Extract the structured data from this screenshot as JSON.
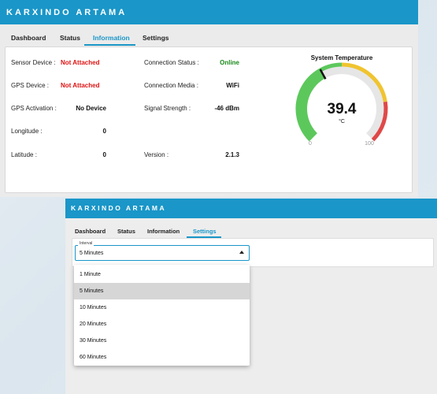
{
  "window1": {
    "brand": "KARXINDO ARTAMA",
    "tabs": [
      "Dashboard",
      "Status",
      "Information",
      "Settings"
    ],
    "active_tab": "Information",
    "info": {
      "sensor_device": {
        "label": "Sensor Device :",
        "value": "Not Attached"
      },
      "gps_device": {
        "label": "GPS Device :",
        "value": "Not Attached"
      },
      "gps_activation": {
        "label": "GPS Activation :",
        "value": "No Device"
      },
      "longitude": {
        "label": "Longitude :",
        "value": "0"
      },
      "latitude": {
        "label": "Latitude :",
        "value": "0"
      },
      "connection_status": {
        "label": "Connection Status :",
        "value": "Online"
      },
      "connection_media": {
        "label": "Connection Media :",
        "value": "WiFi"
      },
      "signal_strength": {
        "label": "Signal Strength :",
        "value": "-46 dBm"
      },
      "version": {
        "label": "Version :",
        "value": "2.1.3"
      }
    },
    "gauge": {
      "title": "System Temperature",
      "value": "39.4",
      "unit": "°C",
      "min": "0",
      "max": "100",
      "level": 39.4,
      "colors": {
        "green": "#5cc85c",
        "yellow": "#f0c430",
        "red": "#e04848",
        "track": "#e6e6e6"
      }
    }
  },
  "window2": {
    "brand": "KARXINDO ARTAMA",
    "tabs": [
      "Dashboard",
      "Status",
      "Information",
      "Settings"
    ],
    "active_tab": "Settings",
    "interval": {
      "label": "Interval",
      "value": "5 Minutes",
      "options": [
        "1 Minute",
        "5 Minutes",
        "10 Minutes",
        "20 Minutes",
        "30 Minutes",
        "60 Minutes"
      ],
      "selected_index": 1
    }
  },
  "colors": {
    "accent": "#1a96c8",
    "error": "#d11111",
    "success": "#1a8a1a"
  }
}
